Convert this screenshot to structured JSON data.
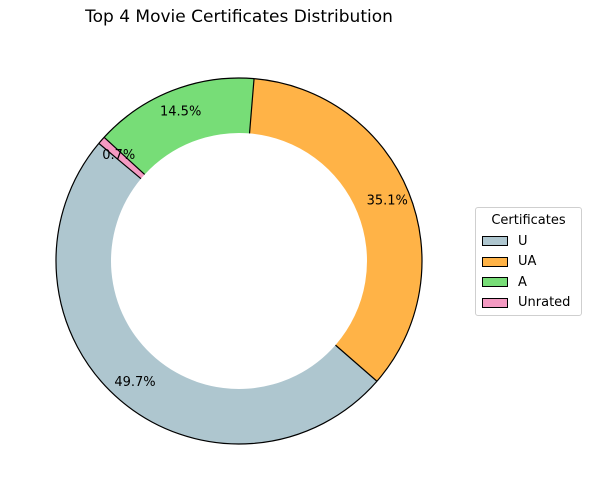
{
  "chart_data": {
    "type": "pie",
    "variant": "donut",
    "title": "Top 4 Movie Certificates Distribution",
    "categories": [
      "U",
      "UA",
      "A",
      "Unrated"
    ],
    "values": [
      49.7,
      35.1,
      14.5,
      0.7
    ],
    "value_labels": [
      "49.7%",
      "35.1%",
      "14.5%",
      "0.7%"
    ],
    "colors": [
      "#aec6cf",
      "#ffb347",
      "#77dd77",
      "#f49ac2"
    ],
    "start_angle_deg": 140,
    "direction": "counterclockwise",
    "legend": {
      "title": "Certificates",
      "placement": "center-right"
    }
  }
}
